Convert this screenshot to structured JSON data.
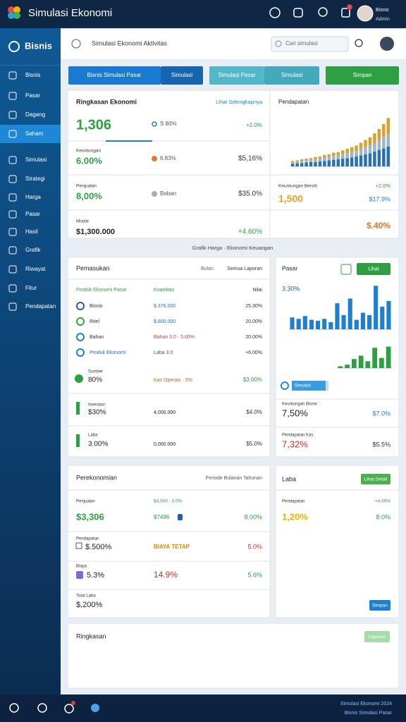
{
  "header": {
    "app_title": "Simulasi Ekonomi",
    "user_name": "Bisnis",
    "user_role": "Admin",
    "notification_count": "1"
  },
  "sidebar": {
    "brand": "Bisnis",
    "items": [
      "Bisnis",
      "Pasar",
      "Dagang",
      "Saham",
      "Simulasi",
      "Strategi",
      "Harga",
      "Pasar",
      "Hasil",
      "Grafik",
      "Riwayat",
      "Fitur",
      "Pendapatan"
    ],
    "active": 3
  },
  "toolbar": {
    "title": "Simulasi Ekonomi Aktivitas",
    "search_placeholder": "Cari simulasi"
  },
  "tabs": [
    "Bisnis Simulasi Pasar",
    "Simulasi",
    "Simulasi Pasar",
    "Simulasi",
    "Simpan"
  ],
  "summary": {
    "title": "Ringkasan Ekonomi",
    "link": "Lihat Selengkapnya",
    "headline": "1,306",
    "headline_badge": "S 80%",
    "headline_change": "+2.0%",
    "rows": [
      {
        "label": "Keuntungan",
        "value": "6.00%",
        "badge": "6.83%",
        "change": "$5,16%"
      },
      {
        "label": "Penjualan",
        "value": "8,00%",
        "badge": "Beban",
        "change": "$35.0%"
      },
      {
        "label": "Modal",
        "value": "$1,300.000",
        "change": "+4.60%"
      }
    ]
  },
  "revenue": {
    "title": "Pendapatan",
    "chart": {
      "type": "bar",
      "stacked": true,
      "ylim": [
        0,
        100
      ],
      "series": [
        {
          "color": "#2a6fb0",
          "values": [
            5,
            6,
            6,
            7,
            8,
            8,
            9,
            10,
            11,
            12,
            13,
            14,
            15,
            16,
            18,
            20,
            22,
            24,
            27,
            30,
            33,
            36
          ]
        },
        {
          "color": "#9bb7c7",
          "values": [
            3,
            3,
            4,
            4,
            4,
            5,
            5,
            6,
            6,
            7,
            7,
            8,
            9,
            10,
            10,
            12,
            13,
            14,
            16,
            18,
            20,
            22
          ]
        },
        {
          "color": "#d8a030",
          "values": [
            2,
            2,
            3,
            3,
            3,
            4,
            4,
            5,
            5,
            6,
            6,
            7,
            8,
            9,
            10,
            11,
            13,
            15,
            17,
            20,
            24,
            30
          ]
        }
      ]
    },
    "label": "Keuntungan Bersih",
    "label_change": "+2.0%",
    "big": "1,500",
    "big_change": "$17.9%",
    "footer": "$.40%"
  },
  "caption": "Grafik Harga · Ekonomi Keuangan",
  "income": {
    "title": "Pemasukan",
    "filter": "Bulan",
    "report": "Semua Laporan",
    "columns": [
      "Produk Ekonomi Pasar",
      "Kuantitas",
      "Nilai"
    ],
    "rows": [
      [
        "Bisnis",
        "$.376.000",
        "25.30%"
      ],
      [
        "Ritel",
        "$.800.000",
        "20.00%"
      ],
      [
        "Bahan",
        "Bahan 3.0 · 5.00%",
        "20.00%"
      ],
      [
        "Produk Ekonomi",
        "Laba 3.0",
        "+6.00%"
      ]
    ],
    "cards": [
      {
        "label": "Sumber",
        "value": "80%",
        "mid": "Kas Operasi · 5%",
        "right": "$3.00%"
      },
      {
        "label": "Investasi",
        "value": "$30%",
        "mid": "4,000.000",
        "right": "$4.0%"
      },
      {
        "label": "Laba",
        "value": "3.00%",
        "mid": "0,000.000",
        "right": "$5.0%"
      }
    ]
  },
  "market": {
    "title": "Pasar",
    "button": "Lihat",
    "label": "3.30%",
    "chart_blue": {
      "type": "bar",
      "ylim": [
        0,
        100
      ],
      "color": "#1e7fd0",
      "values": [
        25,
        22,
        28,
        20,
        18,
        22,
        15,
        55,
        30,
        65,
        20,
        35,
        30,
        92,
        48,
        60
      ]
    },
    "chart_green": {
      "type": "bar",
      "ylim": [
        0,
        100
      ],
      "color": "#2ea043",
      "values": [
        8,
        15,
        40,
        55,
        30,
        90,
        45,
        95
      ]
    },
    "progress_label": "Simulasi",
    "rows": [
      {
        "label": "Keuntungan Bisnis",
        "value": "7,50%",
        "change": "$7.0%"
      },
      {
        "label": "Pendapatan Kas",
        "value": "7,32%",
        "change": "$5.5%"
      }
    ]
  },
  "economy": {
    "title": "Perekonomian",
    "filter": "Periode Bulanan Tahunan",
    "rows": [
      {
        "label": "Penjualan",
        "value": "$3,306",
        "mid_top": "$4,500 · 3.0%",
        "mid": "$7496",
        "right": "8.00%"
      },
      {
        "label": "Pendapatan",
        "value": "$.500%",
        "mid": "BIAYA TETAP",
        "right": "5.0%"
      },
      {
        "label": "Biaya",
        "value": "5.3%",
        "mid": "14.9%",
        "right": "5.6%"
      },
      {
        "label": "Total Laba",
        "value": "$,200%"
      }
    ]
  },
  "profit": {
    "title": "Laba",
    "button": "Lihat Detail",
    "label": "Pendapatan",
    "change": "+4.00%",
    "value": "1,20%",
    "right": "8.0%",
    "save": "Simpan"
  },
  "overview": {
    "title": "Ringkasan",
    "button": "Laporan"
  },
  "footer": {
    "line1": "Simulasi Ekonomi 2024",
    "line2": "Bisnis Simulasi Pasar"
  }
}
